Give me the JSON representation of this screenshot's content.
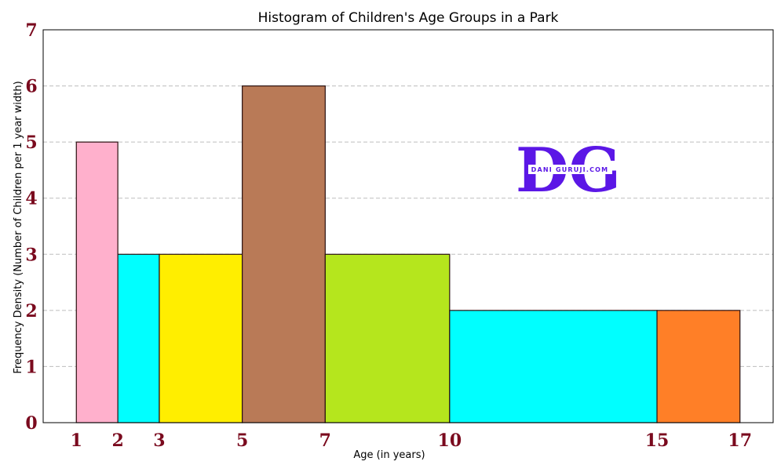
{
  "chart_data": {
    "type": "bar",
    "title": "Histogram of Children's Age Groups in a Park",
    "xlabel": "Age (in years)",
    "ylabel": "Frequency Density (Number of Children per 1 year width)",
    "xlim": [
      0.2,
      17.8
    ],
    "ylim": [
      0,
      7
    ],
    "x_ticks": [
      1,
      2,
      3,
      5,
      7,
      10,
      15,
      17
    ],
    "y_ticks": [
      0,
      1,
      2,
      3,
      4,
      5,
      6,
      7
    ],
    "grid": "horizontal dashed",
    "bins": [
      {
        "start": 1,
        "end": 2,
        "value": 5,
        "color": "#ffb0cc"
      },
      {
        "start": 2,
        "end": 3,
        "value": 3,
        "color": "#00ffff"
      },
      {
        "start": 3,
        "end": 5,
        "value": 3,
        "color": "#ffee00"
      },
      {
        "start": 5,
        "end": 7,
        "value": 6,
        "color": "#b97a57"
      },
      {
        "start": 7,
        "end": 10,
        "value": 3,
        "color": "#b5e61d"
      },
      {
        "start": 10,
        "end": 15,
        "value": 2,
        "color": "#00ffff"
      },
      {
        "start": 15,
        "end": 17,
        "value": 2,
        "color": "#ff7f27"
      }
    ]
  },
  "watermark": {
    "letters": "DG",
    "text": "DANI GURUJI.COM",
    "color": "#5b17e6"
  }
}
